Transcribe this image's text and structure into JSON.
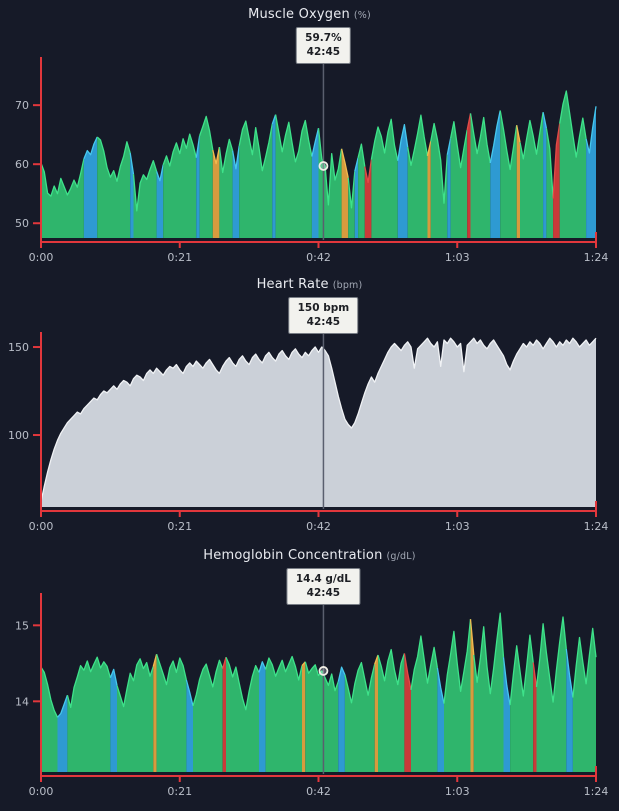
{
  "page": {
    "background": "#161a28",
    "axis_color": "#e2373c",
    "label_color": "#b9bec8",
    "cursor_color": "#5a5f6e",
    "marker_color": "#f2efe7",
    "title_color": "#e9ebf0",
    "unit_color": "#a3a9b5",
    "tooltip_bg": "#f2f2ee",
    "tooltip_border": "#787d85",
    "tooltip_text": "#1d1f24"
  },
  "chart_data": [
    {
      "type": "area",
      "title": "Muscle Oxygen",
      "unit": "(%)",
      "tooltip_value": "59.7%",
      "tooltip_time": "42:45",
      "cursor_frac": 0.5089,
      "cursor_value": 59.7,
      "marker": true,
      "ylim": [
        47.5,
        76.8
      ],
      "y_ticks": [
        {
          "v": 70,
          "label": "70"
        },
        {
          "v": 60,
          "label": "60"
        },
        {
          "v": 50,
          "label": "50"
        }
      ],
      "x_ticks": [
        "0:00",
        "0:21",
        "0:42",
        "1:03",
        "1:24"
      ],
      "xlim_minutes": [
        0,
        84
      ],
      "legend": "off",
      "grid": "off",
      "default_zone": "g",
      "palette": {
        "g": {
          "fill": "#2fb56c",
          "line": "#3ee28a"
        },
        "b": {
          "fill": "#2e9ad2",
          "line": "#46c8ee"
        },
        "o": {
          "fill": "#d79b3e",
          "line": "#f2bb4f"
        },
        "r": {
          "fill": "#c93a39",
          "line": "#e14b47"
        }
      },
      "zones": "gggggggggggggbbbbggggggggggbgggggggbbggggggggggbggggooggggbbggggggggggbgggggggggggbbgggggggooggbggrrggggggggbbbggggggogggggbgggggrggggggbbbgggggogggggggbggrrggggggggbbbgg",
      "values": [
        60.2,
        58.7,
        55.1,
        54.6,
        56.3,
        55.0,
        57.6,
        56.2,
        54.8,
        55.9,
        57.3,
        56.1,
        58.4,
        60.9,
        62.3,
        61.6,
        63.4,
        64.6,
        64.1,
        62.2,
        59.4,
        57.8,
        58.9,
        57.1,
        59.6,
        61.3,
        63.8,
        61.9,
        58.3,
        52.1,
        56.8,
        58.2,
        57.4,
        59.1,
        60.6,
        58.8,
        57.2,
        59.9,
        61.4,
        59.7,
        62.1,
        63.6,
        61.8,
        64.3,
        62.7,
        65.1,
        63.3,
        61.1,
        64.8,
        66.4,
        68.1,
        65.7,
        62.4,
        60.1,
        62.9,
        58.6,
        61.7,
        64.2,
        62.3,
        59.2,
        63.1,
        65.9,
        67.3,
        64.4,
        61.6,
        66.2,
        62.8,
        58.9,
        61.2,
        63.7,
        66.8,
        68.4,
        65.3,
        62.1,
        64.9,
        67.1,
        63.6,
        60.4,
        62.2,
        65.6,
        67.4,
        64.1,
        61.3,
        63.8,
        66.1,
        60.9,
        59.7,
        53.1,
        61.8,
        57.3,
        59.2,
        62.6,
        60.3,
        57.7,
        52.6,
        58.8,
        61.1,
        63.4,
        59.6,
        56.9,
        60.8,
        63.9,
        66.3,
        64.7,
        61.9,
        65.4,
        67.6,
        63.2,
        60.6,
        64.1,
        66.7,
        62.9,
        59.8,
        62.4,
        65.2,
        68.3,
        64.6,
        61.4,
        63.9,
        66.9,
        64.2,
        60.7,
        53.4,
        61.6,
        64.4,
        67.2,
        63.1,
        59.4,
        62.7,
        65.8,
        68.6,
        65.1,
        61.8,
        64.6,
        67.9,
        63.4,
        60.2,
        63.1,
        66.4,
        69.1,
        65.9,
        62.3,
        59.1,
        62.8,
        66.6,
        63.7,
        60.9,
        64.3,
        67.4,
        64.8,
        61.7,
        65.3,
        68.8,
        66.1,
        62.6,
        54.2,
        63.3,
        66.9,
        70.2,
        72.4,
        68.7,
        64.9,
        61.2,
        64.7,
        67.8,
        64.3,
        61.9,
        66.2,
        69.8
      ]
    },
    {
      "type": "area",
      "title": "Heart Rate",
      "unit": "(bpm)",
      "tooltip_value": "150 bpm",
      "tooltip_time": "42:45",
      "cursor_frac": 0.5089,
      "cursor_value": 150,
      "marker": false,
      "ylim": [
        59.1,
        154.0
      ],
      "y_ticks": [
        {
          "v": 150,
          "label": "150"
        },
        {
          "v": 100,
          "label": "100"
        }
      ],
      "x_ticks": [
        "0:00",
        "0:21",
        "0:42",
        "1:03",
        "1:24"
      ],
      "xlim_minutes": [
        0,
        84
      ],
      "legend": "off",
      "grid": "off",
      "default_zone": "m",
      "palette": {
        "m": {
          "fill": "#cbd0d8",
          "line": "#f0f2f5"
        }
      },
      "zones": "",
      "values": [
        62,
        71,
        79,
        86,
        92,
        97,
        101,
        104,
        107,
        109,
        111,
        113,
        112,
        115,
        117,
        119,
        121,
        120,
        123,
        125,
        124,
        126,
        128,
        126,
        129,
        131,
        130,
        128,
        132,
        134,
        133,
        131,
        135,
        137,
        135,
        138,
        136,
        134,
        137,
        139,
        138,
        140,
        137,
        135,
        139,
        141,
        139,
        142,
        140,
        138,
        141,
        143,
        140,
        137,
        135,
        139,
        142,
        144,
        141,
        139,
        143,
        145,
        142,
        140,
        144,
        146,
        143,
        141,
        145,
        147,
        144,
        142,
        146,
        148,
        145,
        143,
        147,
        149,
        146,
        144,
        147,
        145,
        148,
        150,
        147,
        150,
        148,
        145,
        138,
        130,
        122,
        115,
        109,
        106,
        104,
        107,
        112,
        118,
        124,
        129,
        133,
        130,
        135,
        139,
        143,
        147,
        150,
        152,
        150,
        148,
        151,
        153,
        150,
        138,
        149,
        151,
        153,
        155,
        152,
        150,
        153,
        139,
        154,
        152,
        155,
        153,
        150,
        152,
        136,
        151,
        153,
        155,
        152,
        154,
        151,
        149,
        152,
        154,
        151,
        148,
        145,
        140,
        137,
        142,
        146,
        149,
        152,
        150,
        153,
        151,
        154,
        152,
        149,
        152,
        155,
        153,
        150,
        153,
        151,
        154,
        152,
        155,
        153,
        150,
        152,
        154,
        151,
        153,
        155
      ]
    },
    {
      "type": "area",
      "title": "Hemoglobin Concentration",
      "unit": "(g/dL)",
      "tooltip_value": "14.4 g/dL",
      "tooltip_time": "42:45",
      "cursor_frac": 0.5089,
      "cursor_value": 14.4,
      "marker": true,
      "ylim": [
        13.07,
        15.32
      ],
      "y_ticks": [
        {
          "v": 15,
          "label": "15"
        },
        {
          "v": 14,
          "label": "14"
        }
      ],
      "x_ticks": [
        "0:00",
        "0:21",
        "0:42",
        "1:03",
        "1:24"
      ],
      "xlim_minutes": [
        0,
        84
      ],
      "legend": "off",
      "grid": "off",
      "default_zone": "g",
      "palette": {
        "g": {
          "fill": "#2fb56c",
          "line": "#3ee28a"
        },
        "b": {
          "fill": "#2e9ad2",
          "line": "#46c8ee"
        },
        "o": {
          "fill": "#d79b3e",
          "line": "#f2bb4f"
        },
        "r": {
          "fill": "#c93a39",
          "line": "#e14b47"
        }
      },
      "zones": "gggggbbbgggggggggggggbbgggggggggggogggggggggbbgggggggggrggggggggggbbgggggggggggoggggggggg bbgggggggggoggggggggrrggggggggbbggggggggogggggggg bbgggggggrgggggggggbbgggggggg",
      "values": [
        14.45,
        14.38,
        14.22,
        14.02,
        13.88,
        13.79,
        13.84,
        13.96,
        14.08,
        13.92,
        14.18,
        14.32,
        14.47,
        14.41,
        14.53,
        14.39,
        14.49,
        14.58,
        14.44,
        14.52,
        14.46,
        14.31,
        14.42,
        14.21,
        14.07,
        13.93,
        14.16,
        14.37,
        14.27,
        14.48,
        14.56,
        14.43,
        14.51,
        14.33,
        14.46,
        14.62,
        14.49,
        14.36,
        14.22,
        14.44,
        14.53,
        14.38,
        14.57,
        14.47,
        14.28,
        14.12,
        13.94,
        14.09,
        14.29,
        14.42,
        14.49,
        14.34,
        14.19,
        14.39,
        14.54,
        14.43,
        14.58,
        14.48,
        14.32,
        14.45,
        14.24,
        14.04,
        13.89,
        14.13,
        14.33,
        14.47,
        14.38,
        14.52,
        14.42,
        14.57,
        14.48,
        14.33,
        14.44,
        14.54,
        14.39,
        14.49,
        14.59,
        14.46,
        14.28,
        14.47,
        14.52,
        14.37,
        14.43,
        14.48,
        14.34,
        14.4,
        14.31,
        14.21,
        14.36,
        14.14,
        14.26,
        14.45,
        14.35,
        14.17,
        13.98,
        14.23,
        14.41,
        14.51,
        14.29,
        14.08,
        14.31,
        14.49,
        14.61,
        14.46,
        14.27,
        14.53,
        14.68,
        14.41,
        14.22,
        14.5,
        14.63,
        14.37,
        14.15,
        14.42,
        14.59,
        14.86,
        14.55,
        14.24,
        14.48,
        14.71,
        14.44,
        14.18,
        13.97,
        14.35,
        14.62,
        14.92,
        14.49,
        14.13,
        14.39,
        14.66,
        15.08,
        14.61,
        14.25,
        14.57,
        14.98,
        14.46,
        14.1,
        14.43,
        14.81,
        15.16,
        14.58,
        14.21,
        13.95,
        14.36,
        14.73,
        14.4,
        14.07,
        14.45,
        14.87,
        14.51,
        14.19,
        14.56,
        15.02,
        14.64,
        14.3,
        13.99,
        14.41,
        14.78,
        15.11,
        14.69,
        14.34,
        14.05,
        14.47,
        14.84,
        14.52,
        14.23,
        14.61,
        14.96,
        14.58
      ]
    }
  ]
}
